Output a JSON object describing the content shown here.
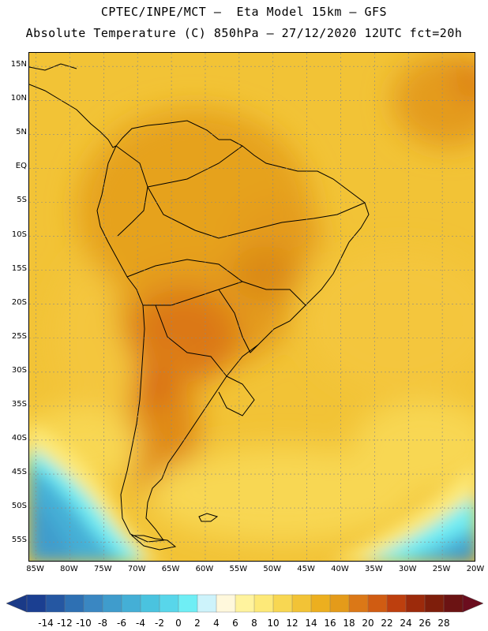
{
  "header": {
    "line1": "CPTEC/INPE/MCT —  Eta Model 15km — GFS",
    "line2": "Absolute Temperature (C) 850hPa — 27/12/2020 12UTC fct=20h"
  },
  "map": {
    "region": "South America",
    "variable": "Absolute Temperature 850hPa",
    "lat_labels": [
      "15N",
      "10N",
      "5N",
      "EQ",
      "5S",
      "10S",
      "15S",
      "20S",
      "25S",
      "30S",
      "35S",
      "40S",
      "45S",
      "50S",
      "55S"
    ],
    "lat_values": [
      15,
      10,
      5,
      0,
      -5,
      -10,
      -15,
      -20,
      -25,
      -30,
      -35,
      -40,
      -45,
      -50,
      -55
    ],
    "lon_labels": [
      "85W",
      "80W",
      "75W",
      "70W",
      "65W",
      "60W",
      "55W",
      "50W",
      "45W",
      "40W",
      "35W",
      "30W",
      "25W",
      "20W"
    ],
    "lon_values": [
      -85,
      -80,
      -75,
      -70,
      -65,
      -60,
      -55,
      -50,
      -45,
      -40,
      -35,
      -30,
      -25,
      -20
    ],
    "lat_range": [
      -58,
      17
    ],
    "lon_range": [
      -86,
      -20
    ]
  },
  "colorbar": {
    "labels": [
      "-14",
      "-12",
      "-10",
      "-8",
      "-6",
      "-4",
      "-2",
      "0",
      "2",
      "4",
      "6",
      "8",
      "10",
      "12",
      "14",
      "16",
      "18",
      "20",
      "22",
      "24",
      "26",
      "28"
    ],
    "colors": [
      "#1b3f91",
      "#2557a2",
      "#2e70b3",
      "#3a87c2",
      "#3f9ccc",
      "#44afd6",
      "#4ac3df",
      "#58d6ea",
      "#6feef5",
      "#cdf3fb",
      "#fff8dc",
      "#fff39e",
      "#fde978",
      "#f8d752",
      "#f2c336",
      "#ecaf1f",
      "#e49b1a",
      "#db7817",
      "#d05c12",
      "#bd3f0e",
      "#9c2a0b",
      "#7e1e0b",
      "#6b1313"
    ],
    "left_arrow_color": "#1a3a87",
    "right_arrow_color": "#6b0d1e"
  }
}
